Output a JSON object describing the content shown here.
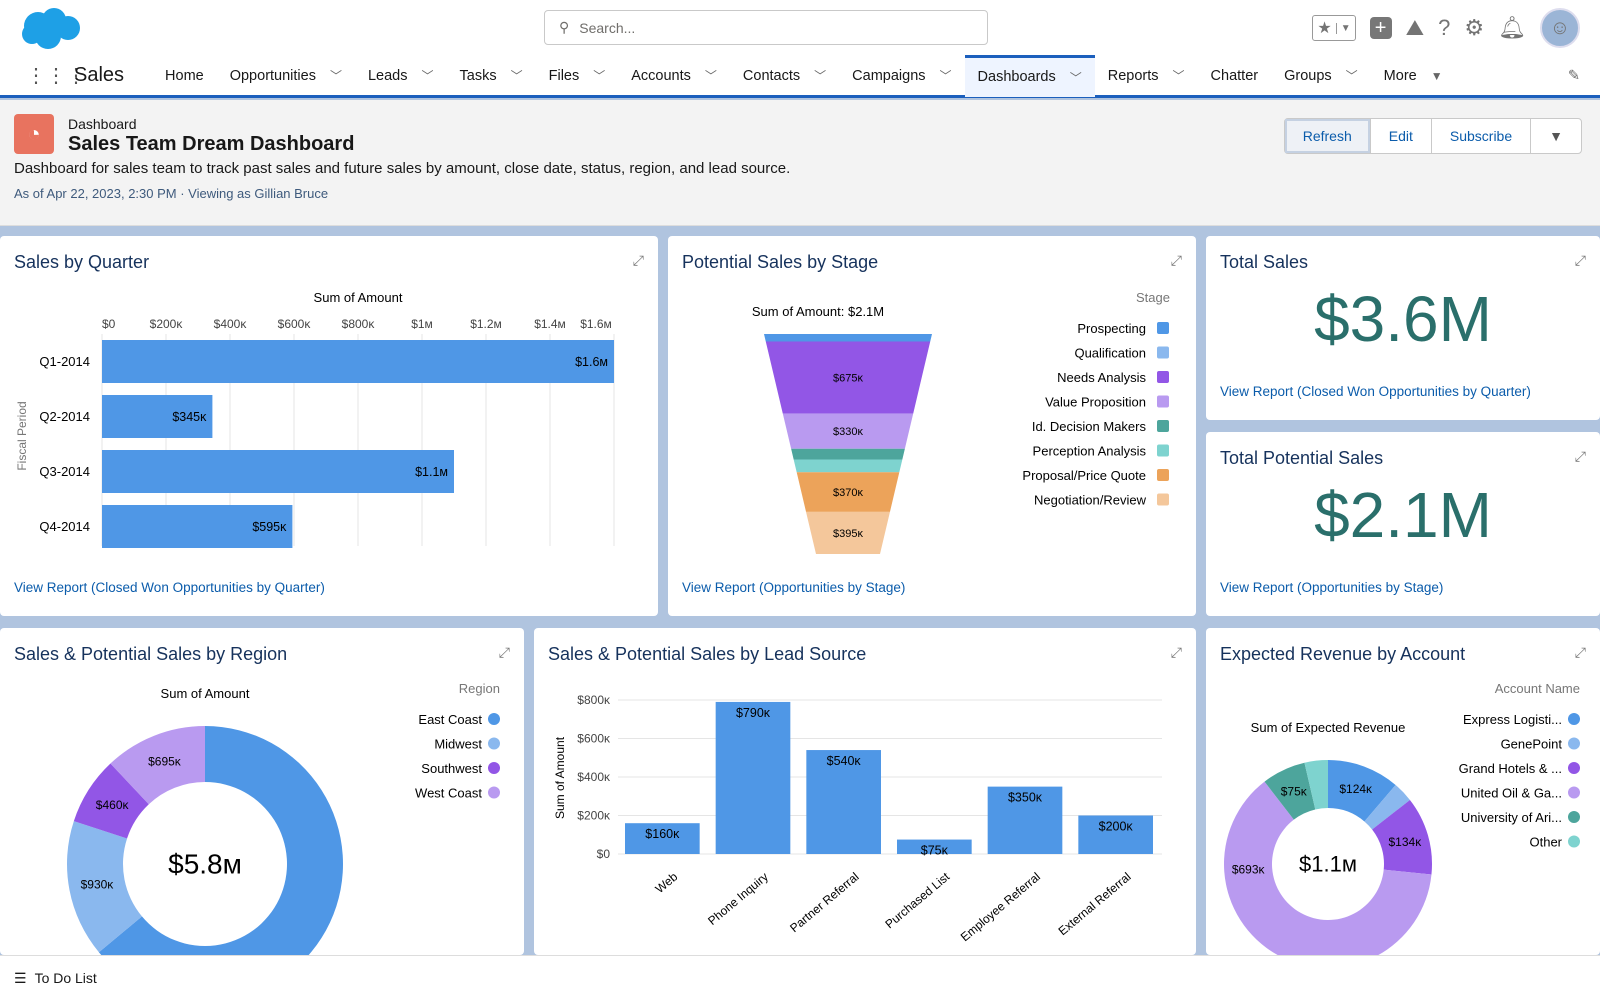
{
  "header": {
    "search_placeholder": "Search...",
    "app_name": "Sales",
    "icons": [
      "favorites-star-icon",
      "add-icon",
      "trailhead-icon",
      "help-icon",
      "setup-gear-icon",
      "notifications-bell-icon",
      "avatar"
    ]
  },
  "nav": {
    "items": [
      {
        "label": "Home",
        "menu": false
      },
      {
        "label": "Opportunities",
        "menu": true
      },
      {
        "label": "Leads",
        "menu": true
      },
      {
        "label": "Tasks",
        "menu": true
      },
      {
        "label": "Files",
        "menu": true
      },
      {
        "label": "Accounts",
        "menu": true
      },
      {
        "label": "Contacts",
        "menu": true
      },
      {
        "label": "Campaigns",
        "menu": true
      },
      {
        "label": "Dashboards",
        "menu": true,
        "active": true
      },
      {
        "label": "Reports",
        "menu": true
      },
      {
        "label": "Chatter",
        "menu": false
      },
      {
        "label": "Groups",
        "menu": true
      },
      {
        "label": "More",
        "menu": true
      }
    ]
  },
  "page": {
    "type": "Dashboard",
    "title": "Sales Team Dream Dashboard",
    "description": "Dashboard for sales team to track past sales and future sales by amount, close date, status, region, and lead source.",
    "as_of": "As of Apr 22, 2023, 2:30 PM · Viewing as Gillian Bruce",
    "buttons": {
      "refresh": "Refresh",
      "edit": "Edit",
      "subscribe": "Subscribe"
    }
  },
  "cards": {
    "quarter": {
      "title": "Sales by Quarter",
      "link": "View Report (Closed Won Opportunities by Quarter)"
    },
    "stage": {
      "title": "Potential Sales by Stage",
      "link": "View Report (Opportunities by Stage)"
    },
    "total": {
      "title": "Total Sales",
      "value": "$3.6M",
      "link": "View Report (Closed Won Opportunities by Quarter)"
    },
    "potential": {
      "title": "Total Potential Sales",
      "value": "$2.1M",
      "link": "View Report (Opportunities by Stage)"
    },
    "region": {
      "title": "Sales & Potential Sales by Region"
    },
    "lead": {
      "title": "Sales & Potential Sales by Lead Source"
    },
    "account": {
      "title": "Expected Revenue by Account"
    }
  },
  "footer": {
    "label": "To Do List"
  },
  "chart_data": [
    {
      "type": "bar",
      "orientation": "horizontal",
      "title": "Sum of Amount",
      "ylabel": "Fiscal Period",
      "categories": [
        "Q1-2014",
        "Q2-2014",
        "Q3-2014",
        "Q4-2014"
      ],
      "values": [
        1600000,
        345000,
        1100000,
        595000
      ],
      "labels": [
        "$1.6M",
        "$345K",
        "$1.1M",
        "$595K"
      ],
      "xlim": [
        0,
        1600000
      ],
      "ticks": [
        "$0",
        "$200K",
        "$400K",
        "$600K",
        "$800K",
        "$1M",
        "$1.2M",
        "$1.4M",
        "$1.6M"
      ],
      "color": "#4f97e6"
    },
    {
      "type": "funnel",
      "title": "Sum of Amount: $2.1M",
      "legend_title": "Stage",
      "legend": "right",
      "categories": [
        "Prospecting",
        "Qualification",
        "Needs Analysis",
        "Value Proposition",
        "Id. Decision Makers",
        "Perception Analysis",
        "Proposal/Price Quote",
        "Negotiation/Review"
      ],
      "values": [
        70000,
        0,
        675000,
        330000,
        100000,
        120000,
        370000,
        395000
      ],
      "labels": [
        "",
        "",
        "$675K",
        "$330K",
        "",
        "",
        "$370K",
        "$395K"
      ],
      "colors": [
        "#4f97e6",
        "#8ab8ee",
        "#9256e6",
        "#b99af0",
        "#4da59c",
        "#7ed3cf",
        "#eca35a",
        "#f4c79b"
      ]
    },
    {
      "type": "donut",
      "title": "Sum of Amount",
      "center": "$5.8M",
      "legend_title": "Region",
      "legend": "right",
      "categories": [
        "East Coast",
        "Midwest",
        "Southwest",
        "West Coast"
      ],
      "values": [
        3700000,
        930000,
        460000,
        695000
      ],
      "labels": [
        "$3.7M",
        "$930K",
        "$460K",
        "$695K"
      ],
      "colors": [
        "#4f97e6",
        "#8ab8ee",
        "#9256e6",
        "#b99af0"
      ]
    },
    {
      "type": "bar",
      "orientation": "vertical",
      "ylabel": "Sum of Amount",
      "categories": [
        "Web",
        "Phone Inquiry",
        "Partner Referral",
        "Purchased List",
        "Employee Referral",
        "External Referral"
      ],
      "values": [
        160000,
        790000,
        540000,
        75000,
        350000,
        200000
      ],
      "labels": [
        "$160K",
        "$790K",
        "$540K",
        "$75K",
        "$350K",
        "$200K"
      ],
      "ylim": [
        0,
        800000
      ],
      "ticks": [
        "$0",
        "$200K",
        "$400K",
        "$600K",
        "$800K"
      ],
      "grid": true,
      "color": "#4f97e6"
    },
    {
      "type": "donut",
      "title": "Sum of Expected Revenue",
      "center": "$1.1M",
      "legend_title": "Account Name",
      "legend": "right",
      "categories": [
        "Express Logisti...",
        "GenePoint",
        "Grand Hotels & ...",
        "United Oil & Ga...",
        "University of Ari...",
        "Other"
      ],
      "values": [
        124000,
        35000,
        134000,
        693000,
        75000,
        40000
      ],
      "labels": [
        "$124K",
        "",
        "$134K",
        "$693K",
        "$75K",
        ""
      ],
      "colors": [
        "#4f97e6",
        "#8ab8ee",
        "#9256e6",
        "#b99af0",
        "#4da59c",
        "#7ed3cf"
      ]
    }
  ]
}
